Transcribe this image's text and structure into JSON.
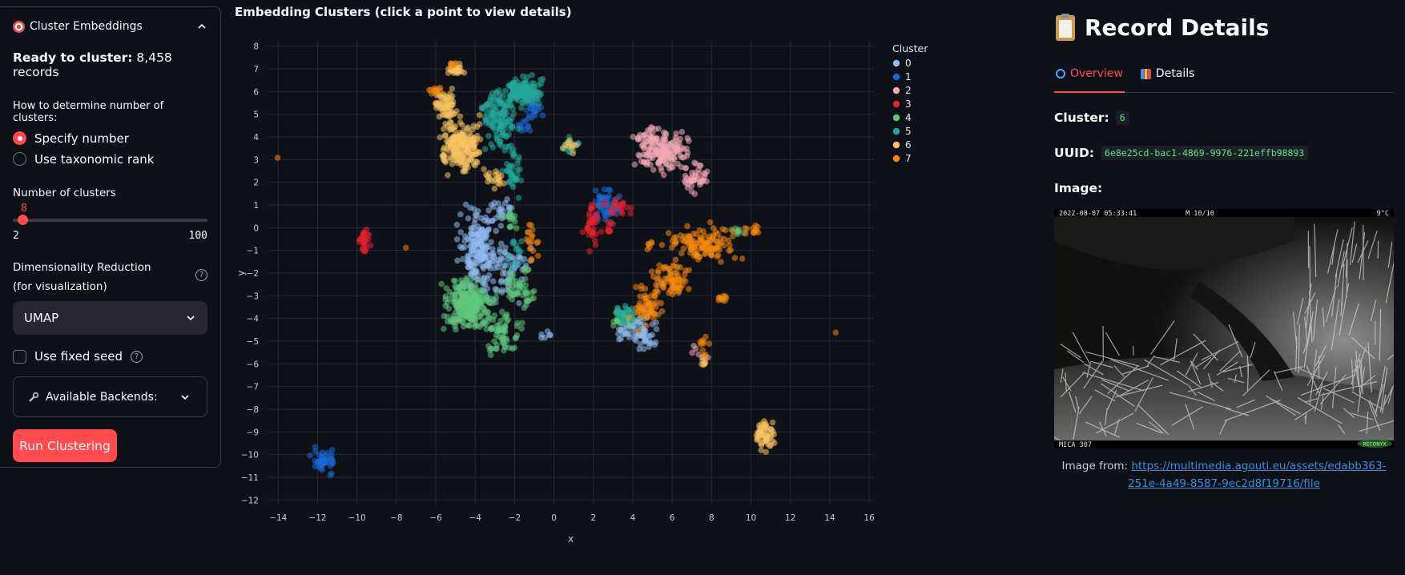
{
  "sidebar": {
    "header_label": "Cluster Embeddings",
    "ready_bold": "Ready to cluster:",
    "ready_value": "8,458 records",
    "how_label": "How to determine number of clusters:",
    "radio_options": [
      "Specify number",
      "Use taxonomic rank"
    ],
    "radio_selected": "Specify number",
    "num_clusters_label": "Number of clusters",
    "num_clusters_value": "8",
    "slider_min": "2",
    "slider_max": "100",
    "dim_label": "Dimensionality Reduction (for visualization)",
    "dim_value": "UMAP",
    "fixed_seed_label": "Use fixed seed",
    "fixed_seed_checked": false,
    "backends_label": "Available Backends:",
    "run_label": "Run Clustering"
  },
  "chart": {
    "title": "Embedding Clusters (click a point to view details)"
  },
  "chart_data": {
    "type": "scatter",
    "xlabel": "x",
    "ylabel": "y",
    "xlim": [
      -14.5,
      16.2
    ],
    "ylim": [
      -12.2,
      8.2
    ],
    "xticks": [
      -14,
      -12,
      -10,
      -8,
      -6,
      -4,
      -2,
      0,
      2,
      4,
      6,
      8,
      10,
      12,
      14,
      16
    ],
    "yticks": [
      8,
      7,
      6,
      5,
      4,
      3,
      2,
      1,
      0,
      -1,
      -2,
      -3,
      -4,
      -5,
      -6,
      -7,
      -8,
      -9,
      -10,
      -11,
      -12
    ],
    "grid": true,
    "legend_title": "Cluster",
    "legend_position": "right",
    "series": [
      {
        "name": "0",
        "color": "#8fbcf0",
        "clusters": [
          [
            -3.8,
            -1.0,
            0.7,
            1.2,
            200
          ],
          [
            -2.2,
            -1.8,
            0.6,
            0.9,
            50
          ],
          [
            4.3,
            -4.6,
            0.7,
            0.5,
            70
          ],
          [
            -2.5,
            0.8,
            0.4,
            0.3,
            20
          ],
          [
            -0.4,
            -4.8,
            0.2,
            0.2,
            6
          ]
        ]
      },
      {
        "name": "1",
        "color": "#1a68d6",
        "clusters": [
          [
            -11.7,
            -10.3,
            0.4,
            0.35,
            45
          ],
          [
            2.6,
            0.9,
            0.5,
            0.5,
            55
          ],
          [
            -1.1,
            5.2,
            0.3,
            0.3,
            20
          ],
          [
            -1.5,
            4.6,
            0.3,
            0.3,
            12
          ]
        ]
      },
      {
        "name": "2",
        "color": "#f2a9b6",
        "clusters": [
          [
            5.6,
            3.3,
            0.9,
            0.6,
            150
          ],
          [
            7.2,
            2.2,
            0.4,
            0.4,
            40
          ],
          [
            4.8,
            4.1,
            0.35,
            0.3,
            25
          ],
          [
            7.3,
            -5.6,
            0.3,
            0.3,
            8
          ]
        ]
      },
      {
        "name": "3",
        "color": "#e8232d",
        "clusters": [
          [
            -9.6,
            -0.5,
            0.2,
            0.4,
            25
          ],
          [
            1.9,
            0.2,
            0.25,
            0.7,
            35
          ],
          [
            3.3,
            0.9,
            0.5,
            0.3,
            20
          ],
          [
            2.8,
            -0.1,
            0.3,
            0.3,
            10
          ]
        ]
      },
      {
        "name": "4",
        "color": "#5ec77d",
        "clusters": [
          [
            -4.3,
            -3.4,
            0.8,
            0.7,
            260
          ],
          [
            -2.6,
            -4.6,
            0.6,
            0.6,
            60
          ],
          [
            -1.9,
            -2.3,
            0.5,
            0.6,
            40
          ],
          [
            3.5,
            -4.0,
            0.5,
            0.3,
            30
          ],
          [
            -1.2,
            -3.2,
            0.2,
            0.3,
            10
          ],
          [
            9.3,
            -0.1,
            0.3,
            0.2,
            8
          ],
          [
            -2.2,
            0.3,
            0.3,
            0.3,
            14
          ]
        ]
      },
      {
        "name": "5",
        "color": "#24a89a",
        "clusters": [
          [
            -1.6,
            6.0,
            0.6,
            0.4,
            150
          ],
          [
            -2.7,
            4.8,
            0.6,
            0.8,
            120
          ],
          [
            -2.1,
            2.5,
            0.3,
            0.8,
            40
          ],
          [
            0.9,
            3.7,
            0.3,
            0.25,
            15
          ],
          [
            3.5,
            -3.8,
            0.4,
            0.3,
            25
          ],
          [
            -1.9,
            -1.1,
            0.3,
            0.5,
            15
          ]
        ]
      },
      {
        "name": "6",
        "color": "#f7c360",
        "clusters": [
          [
            -4.7,
            3.6,
            0.7,
            0.8,
            200
          ],
          [
            -5.5,
            5.4,
            0.4,
            0.4,
            60
          ],
          [
            -5.0,
            7.0,
            0.3,
            0.2,
            25
          ],
          [
            -3.0,
            2.2,
            0.3,
            0.3,
            20
          ],
          [
            10.7,
            -9.1,
            0.35,
            0.5,
            60
          ],
          [
            7.6,
            -5.9,
            0.1,
            0.2,
            6
          ],
          [
            0.8,
            3.6,
            0.3,
            0.2,
            10
          ]
        ]
      },
      {
        "name": "7",
        "color": "#f5890e",
        "clusters": [
          [
            7.5,
            -0.7,
            1.1,
            0.5,
            120
          ],
          [
            5.9,
            -2.3,
            0.6,
            0.5,
            70
          ],
          [
            4.7,
            -3.4,
            0.5,
            0.6,
            60
          ],
          [
            8.6,
            -3.2,
            0.2,
            0.2,
            10
          ],
          [
            7.6,
            -5.2,
            0.2,
            0.3,
            10
          ],
          [
            10.1,
            -0.1,
            0.3,
            0.15,
            12
          ],
          [
            -1.1,
            -0.8,
            0.2,
            0.7,
            18
          ],
          [
            -6.1,
            6.1,
            0.3,
            0.15,
            12
          ],
          [
            -5.1,
            7.2,
            0.15,
            0.1,
            6
          ],
          [
            -14.0,
            3.2,
            0.1,
            0.1,
            1
          ],
          [
            -7.5,
            -0.8,
            0.1,
            0.1,
            1
          ],
          [
            14.3,
            -4.6,
            0.1,
            0.1,
            1
          ],
          [
            4.8,
            -0.8,
            0.2,
            0.2,
            6
          ]
        ]
      }
    ]
  },
  "details": {
    "title": "Record Details",
    "tabs": [
      "Overview",
      "Details"
    ],
    "active_tab": "Overview",
    "cluster_label": "Cluster:",
    "cluster_value": "6",
    "uuid_label": "UUID:",
    "uuid_value": "6e8e25cd-bac1-4869-9976-221effb98893",
    "image_label": "Image:",
    "image_timestamp": "2022-08-07 05:33:41",
    "image_moon": "M 10/10",
    "image_temp": "9°C",
    "image_camera": "MICA 307",
    "image_brand": "RECONYX",
    "caption_prefix": "Image from:",
    "caption_link": "https://multimedia.agouti.eu/assets/edabb363-251e-4a49-8587-9ec2d8f19716/file"
  }
}
